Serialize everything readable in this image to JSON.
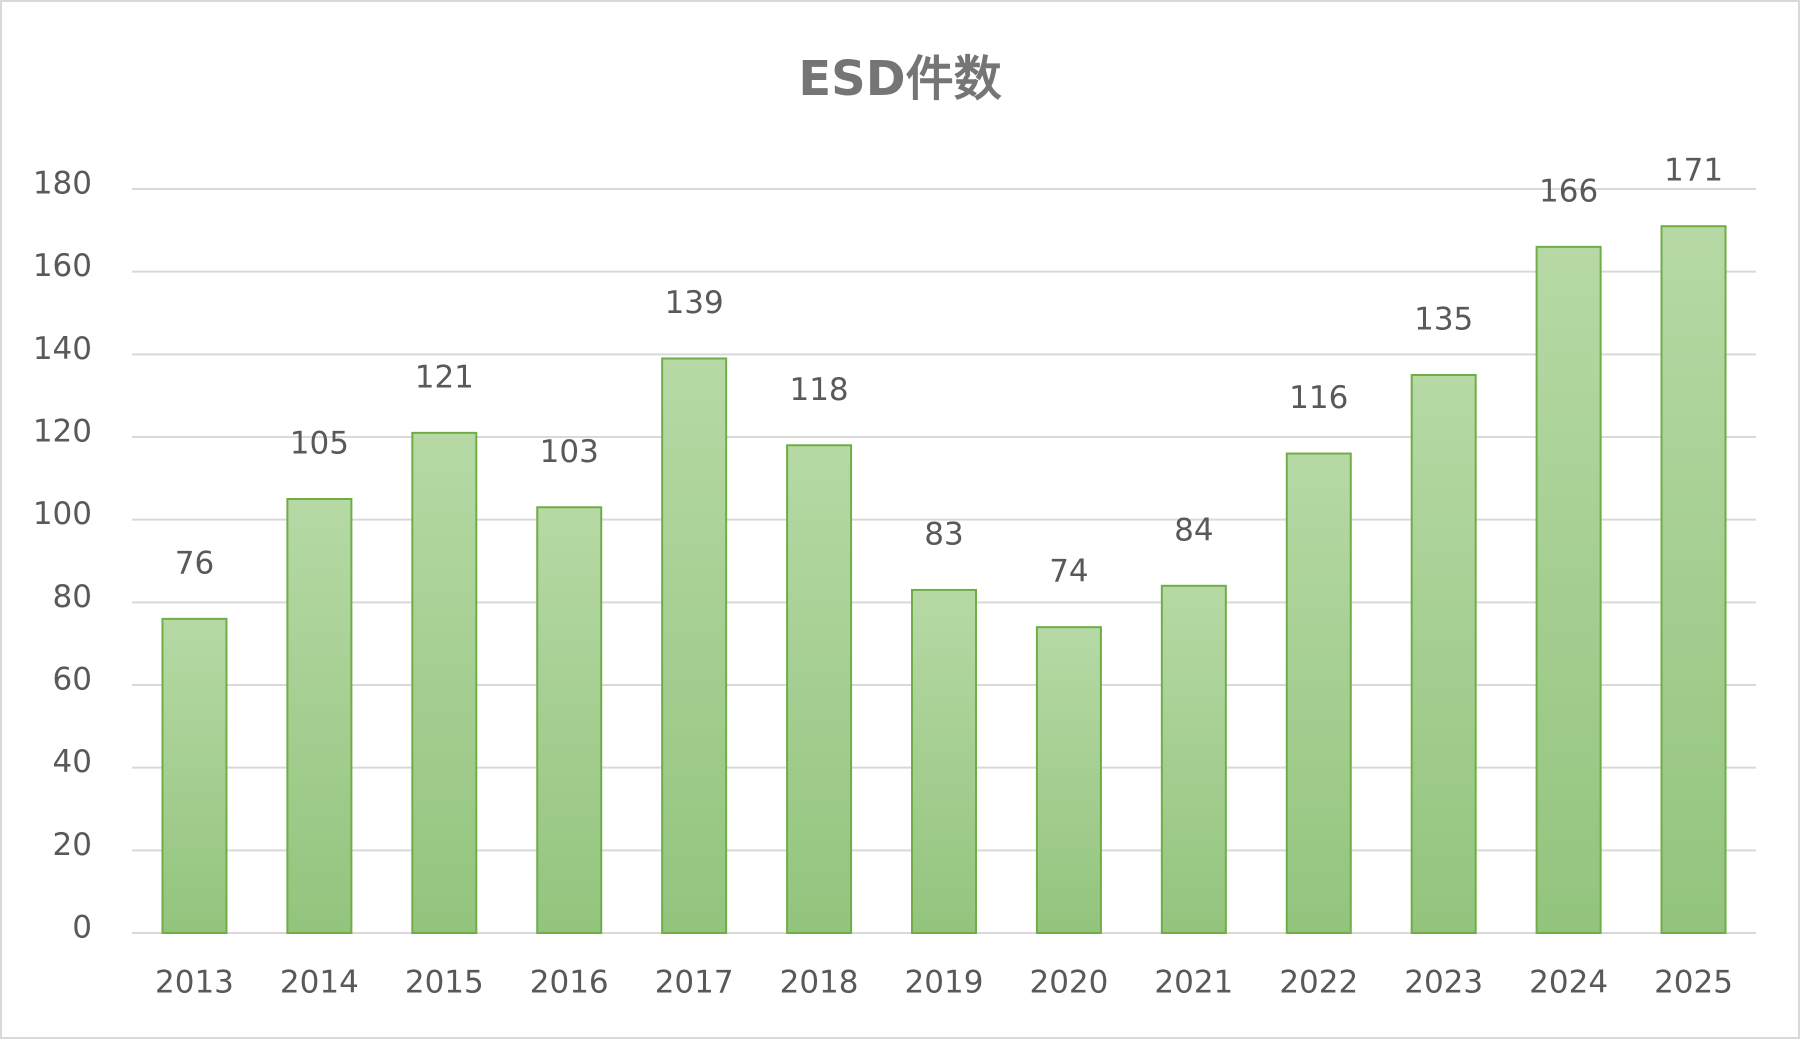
{
  "chart_data": {
    "type": "bar",
    "title": "ESD件数",
    "categories": [
      "2013",
      "2014",
      "2015",
      "2016",
      "2017",
      "2018",
      "2019",
      "2020",
      "2021",
      "2022",
      "2023",
      "2024",
      "2025"
    ],
    "values": [
      76,
      105,
      121,
      103,
      139,
      118,
      83,
      74,
      84,
      116,
      135,
      166,
      171
    ],
    "color": "#70ad47",
    "ylim": [
      0,
      180
    ],
    "yticks": [
      0,
      20,
      40,
      60,
      80,
      100,
      120,
      140,
      160,
      180
    ],
    "grid": true
  }
}
